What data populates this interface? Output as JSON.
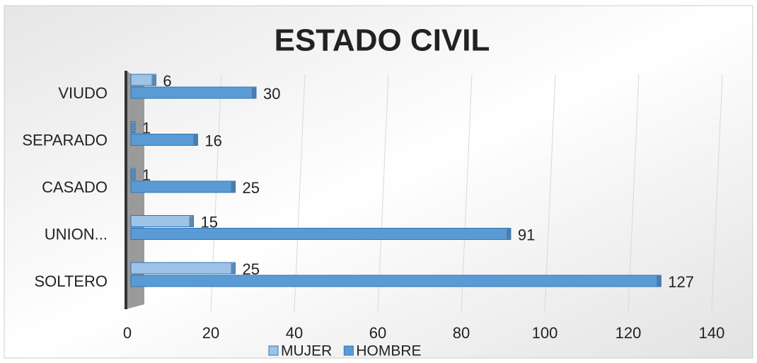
{
  "chart_data": {
    "type": "hbar",
    "title": "ESTADO CIVIL",
    "categories": [
      "SOLTERO",
      "UNION...",
      "CASADO",
      "SEPARADO",
      "VIUDO"
    ],
    "series": [
      {
        "name": "MUJER",
        "color": "#9dc3e6",
        "values": [
          25,
          15,
          1,
          1,
          6
        ]
      },
      {
        "name": "HOMBRE",
        "color": "#5b9bd5",
        "values": [
          127,
          91,
          25,
          16,
          30
        ]
      }
    ],
    "xlim": [
      0,
      140
    ],
    "xticks": [
      0,
      20,
      40,
      60,
      80,
      100,
      120,
      140
    ],
    "grid": true,
    "legend": "bottom"
  }
}
